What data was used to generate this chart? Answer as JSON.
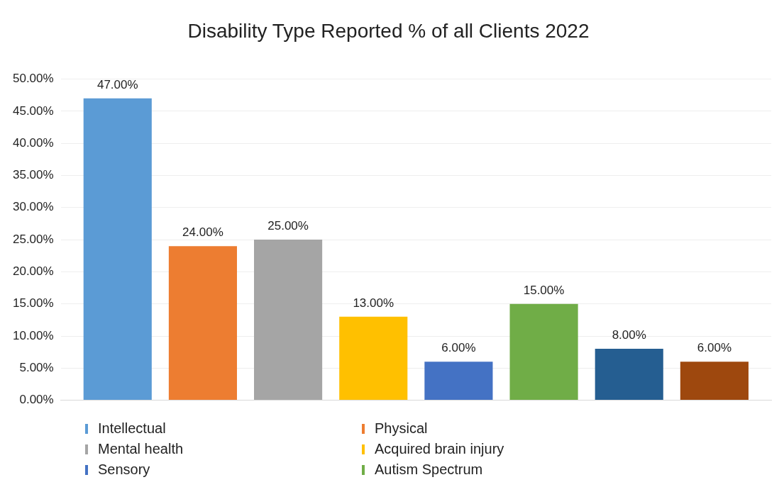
{
  "chart_data": {
    "type": "bar",
    "title": "Disability Type Reported % of all Clients 2022",
    "categories": [
      null
    ],
    "series": [
      {
        "name": "Intellectual",
        "color": "#5b9bd5",
        "values": [
          47
        ],
        "value_labels": [
          "47.00%"
        ]
      },
      {
        "name": "Physical",
        "color": "#ed7d31",
        "values": [
          24
        ],
        "value_labels": [
          "24.00%"
        ]
      },
      {
        "name": "Mental health",
        "color": "#a5a5a5",
        "values": [
          25
        ],
        "value_labels": [
          "25.00%"
        ]
      },
      {
        "name": "Acquired brain injury",
        "color": "#ffc000",
        "values": [
          13
        ],
        "value_labels": [
          "13.00%"
        ]
      },
      {
        "name": "Sensory",
        "color": "#4472c4",
        "values": [
          6
        ],
        "value_labels": [
          "6.00%"
        ]
      },
      {
        "name": "Autism Spectrum",
        "color": "#70ad47",
        "values": [
          15
        ],
        "value_labels": [
          "15.00%"
        ]
      },
      {
        "color": "#255e91",
        "values": [
          8
        ],
        "value_labels": [
          "8.00%"
        ]
      },
      {
        "color": "#9e480e",
        "values": [
          6
        ],
        "value_labels": [
          "6.00%"
        ]
      }
    ],
    "ylim": [
      0,
      50
    ],
    "yticks": [
      {
        "value": 0,
        "label": "0.00%"
      },
      {
        "value": 5,
        "label": "5.00%"
      },
      {
        "value": 10,
        "label": "10.00%"
      },
      {
        "value": 15,
        "label": "15.00%"
      },
      {
        "value": 20,
        "label": "20.00%"
      },
      {
        "value": 25,
        "label": "25.00%"
      },
      {
        "value": 30,
        "label": "30.00%"
      },
      {
        "value": 35,
        "label": "35.00%"
      },
      {
        "value": 40,
        "label": "40.00%"
      },
      {
        "value": 45,
        "label": "45.00%"
      },
      {
        "value": 50,
        "label": "50.00%"
      }
    ],
    "grid": "y",
    "legend": "bottom"
  }
}
